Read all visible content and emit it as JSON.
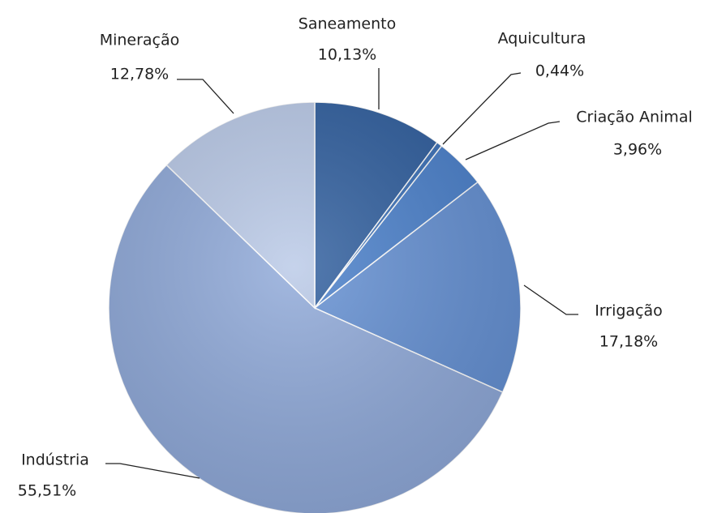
{
  "chart_data": {
    "type": "pie",
    "categories": [
      "Saneamento",
      "Aquicultura",
      "Criação Animal",
      "Irrigação",
      "Indústria",
      "Mineração"
    ],
    "values": [
      10.13,
      0.44,
      3.96,
      17.18,
      55.51,
      12.78
    ],
    "value_labels": [
      "10,13%",
      "0,44%",
      "3,96%",
      "17,18%",
      "55,51%",
      "12,78%"
    ],
    "colors": [
      "#2f5e9e",
      "#3a70b8",
      "#4a80cb",
      "#6490d3",
      "#8fa9d9",
      "#b9c9e7"
    ]
  }
}
